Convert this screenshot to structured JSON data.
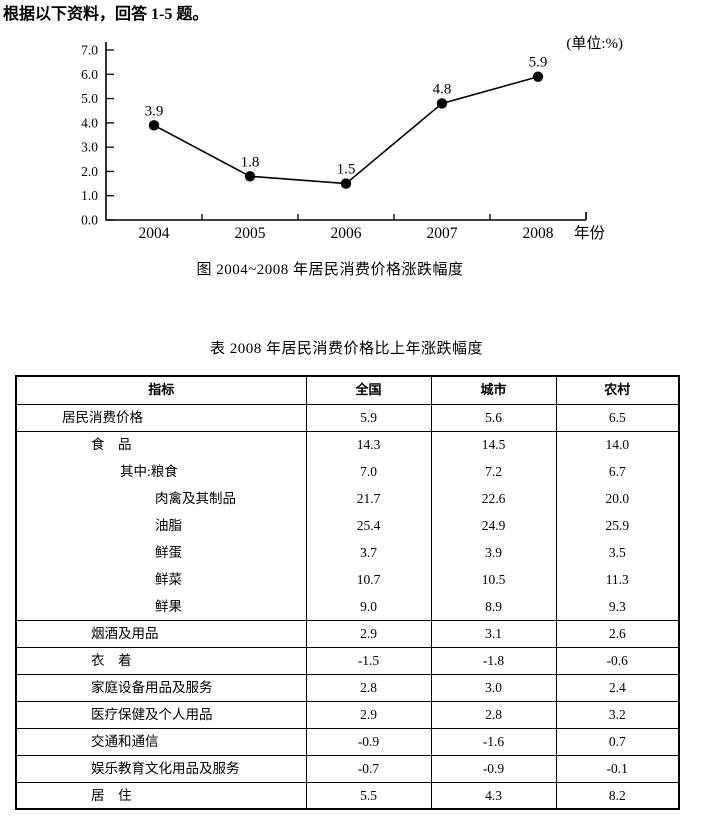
{
  "page": {
    "instruction": "根据以下资料，回答 1-5 题。"
  },
  "chart": {
    "unit_label": "(单位:%)",
    "x_axis_title": "年份",
    "caption": "图  2004~2008 年居民消费价格涨跌幅度"
  },
  "chart_data": {
    "type": "line",
    "title": "图 2004~2008 年居民消费价格涨跌幅度",
    "x": [
      "2004",
      "2005",
      "2006",
      "2007",
      "2008"
    ],
    "values": [
      3.9,
      1.8,
      1.5,
      4.8,
      5.9
    ],
    "data_labels": [
      "3.9",
      "1.8",
      "1.5",
      "4.8",
      "5.9"
    ],
    "xlabel": "年份",
    "unit": "(单位:%)",
    "ylim": [
      0.0,
      7.0
    ],
    "ytick_labels": [
      "0.0",
      "1.0",
      "2.0",
      "3.0",
      "4.0",
      "5.0",
      "6.0",
      "7.0"
    ],
    "grid": false,
    "legend": "none",
    "line_color": "#000000",
    "marker": "filled-circle"
  },
  "table": {
    "title": "表  2008 年居民消费价格比上年涨跌幅度",
    "headers": [
      "指标",
      "全国",
      "城市",
      "农村"
    ],
    "rows": [
      {
        "label": "居民消费价格",
        "indent": 0,
        "values": [
          "5.9",
          "5.6",
          "6.5"
        ]
      },
      {
        "label": "食　品",
        "indent": 1,
        "values": [
          "14.3",
          "14.5",
          "14.0"
        ]
      },
      {
        "label": "其中:粮食",
        "indent": 2,
        "values": [
          "7.0",
          "7.2",
          "6.7"
        ]
      },
      {
        "label": "肉禽及其制品",
        "indent": 3,
        "values": [
          "21.7",
          "22.6",
          "20.0"
        ]
      },
      {
        "label": "油脂",
        "indent": 3,
        "values": [
          "25.4",
          "24.9",
          "25.9"
        ]
      },
      {
        "label": "鲜蛋",
        "indent": 3,
        "values": [
          "3.7",
          "3.9",
          "3.5"
        ]
      },
      {
        "label": "鲜菜",
        "indent": 3,
        "values": [
          "10.7",
          "10.5",
          "11.3"
        ]
      },
      {
        "label": "鲜果",
        "indent": 3,
        "values": [
          "9.0",
          "8.9",
          "9.3"
        ]
      },
      {
        "label": "烟酒及用品",
        "indent": 1,
        "values": [
          "2.9",
          "3.1",
          "2.6"
        ]
      },
      {
        "label": "衣　着",
        "indent": 1,
        "values": [
          "-1.5",
          "-1.8",
          "-0.6"
        ]
      },
      {
        "label": "家庭设备用品及服务",
        "indent": 1,
        "values": [
          "2.8",
          "3.0",
          "2.4"
        ]
      },
      {
        "label": "医疗保健及个人用品",
        "indent": 1,
        "values": [
          "2.9",
          "2.8",
          "3.2"
        ]
      },
      {
        "label": "交通和通信",
        "indent": 1,
        "values": [
          "-0.9",
          "-1.6",
          "0.7"
        ]
      },
      {
        "label": "娱乐教育文化用品及服务",
        "indent": 1,
        "values": [
          "-0.7",
          "-0.9",
          "-0.1"
        ]
      },
      {
        "label": "居　住",
        "indent": 1,
        "values": [
          "5.5",
          "4.3",
          "8.2"
        ]
      }
    ]
  }
}
